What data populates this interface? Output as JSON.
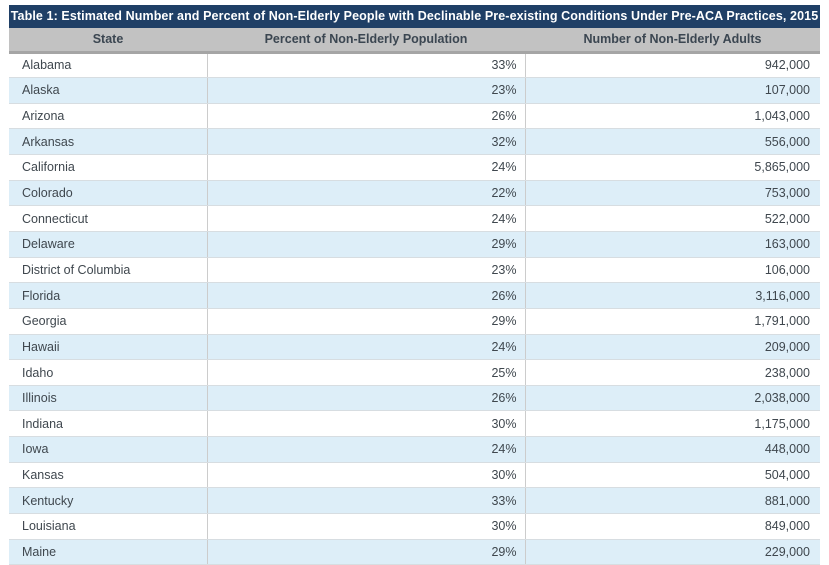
{
  "chart_data": {
    "type": "table",
    "title": "Table 1: Estimated Number and Percent of Non-Elderly People with Declinable Pre-existing Conditions Under Pre-ACA Practices, 2015",
    "columns": [
      "State",
      "Percent of Non-Elderly Population",
      "Number of Non-Elderly Adults"
    ],
    "rows": [
      [
        "Alabama",
        "33%",
        "942,000"
      ],
      [
        "Alaska",
        "23%",
        "107,000"
      ],
      [
        "Arizona",
        "26%",
        "1,043,000"
      ],
      [
        "Arkansas",
        "32%",
        "556,000"
      ],
      [
        "California",
        "24%",
        "5,865,000"
      ],
      [
        "Colorado",
        "22%",
        "753,000"
      ],
      [
        "Connecticut",
        "24%",
        "522,000"
      ],
      [
        "Delaware",
        "29%",
        "163,000"
      ],
      [
        "District of Columbia",
        "23%",
        "106,000"
      ],
      [
        "Florida",
        "26%",
        "3,116,000"
      ],
      [
        "Georgia",
        "29%",
        "1,791,000"
      ],
      [
        "Hawaii",
        "24%",
        "209,000"
      ],
      [
        "Idaho",
        "25%",
        "238,000"
      ],
      [
        "Illinois",
        "26%",
        "2,038,000"
      ],
      [
        "Indiana",
        "30%",
        "1,175,000"
      ],
      [
        "Iowa",
        "24%",
        "448,000"
      ],
      [
        "Kansas",
        "30%",
        "504,000"
      ],
      [
        "Kentucky",
        "33%",
        "881,000"
      ],
      [
        "Louisiana",
        "30%",
        "849,000"
      ],
      [
        "Maine",
        "29%",
        "229,000"
      ]
    ]
  },
  "colors": {
    "title_bar_bg": "#1f3f66",
    "title_text": "#ffffff",
    "header_bg": "#c2c2c2",
    "header_text": "#3b4651",
    "header_border": "#a5a5a5",
    "row_bg": "#ffffff",
    "row_alt_bg": "#ddeef8",
    "cell_text": "#3f474e",
    "row_border": "#d7dde1",
    "column_border": "#cccccc",
    "page_bg": "#ffffff"
  }
}
